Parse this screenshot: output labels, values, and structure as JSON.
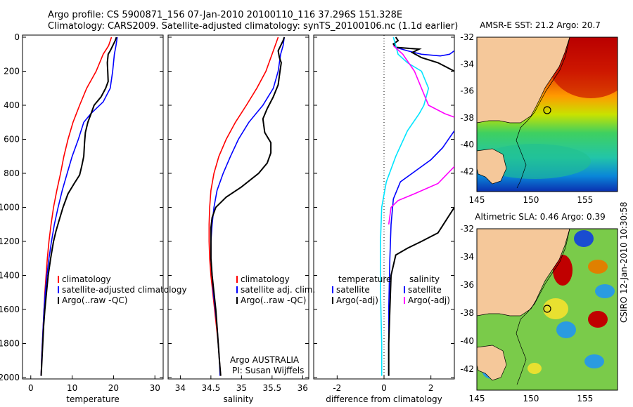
{
  "header": {
    "line1": "Argo profile: CS 5900871_156 07-Jan-2010 20100110_116 37.296S 151.328E",
    "line2": "Climatology: CARS2009. Satellite-adjusted climatology: synTS_20100106.nc (1.1d earlier)"
  },
  "colors": {
    "climatology": "#ff0000",
    "satellite": "#0000ff",
    "argo": "#000000",
    "cyan": "#00e5ff",
    "magenta": "#ff00ff",
    "land": "#f5c89a"
  },
  "chart_data": [
    {
      "type": "line",
      "xlabel": "temperature",
      "ylabel": "",
      "xlim": [
        -2,
        32
      ],
      "ylim": [
        2000,
        0
      ],
      "y_reversed": true,
      "xticks": [
        0,
        10,
        20,
        30
      ],
      "yticks": [
        0,
        200,
        400,
        600,
        800,
        1000,
        1200,
        1400,
        1600,
        1800,
        2000
      ],
      "legend": [
        "climatology",
        "satellite-adjusted climatology",
        "Argo(..raw -QC)"
      ],
      "legend_position": "bottom-right",
      "series": [
        {
          "name": "climatology",
          "color": "#ff0000",
          "points": [
            [
              19.5,
              0
            ],
            [
              18.8,
              50
            ],
            [
              17.5,
              100
            ],
            [
              15.8,
              200
            ],
            [
              13.5,
              300
            ],
            [
              11.8,
              400
            ],
            [
              10.2,
              500
            ],
            [
              9.0,
              600
            ],
            [
              8.0,
              700
            ],
            [
              7.2,
              800
            ],
            [
              6.3,
              900
            ],
            [
              5.5,
              1000
            ],
            [
              4.9,
              1100
            ],
            [
              4.4,
              1200
            ],
            [
              4.0,
              1300
            ],
            [
              3.7,
              1400
            ],
            [
              3.4,
              1500
            ],
            [
              3.2,
              1600
            ],
            [
              3.0,
              1700
            ],
            [
              2.8,
              1800
            ],
            [
              2.6,
              1900
            ],
            [
              2.5,
              1990
            ]
          ]
        },
        {
          "name": "satellite-adjusted climatology",
          "color": "#0000ff",
          "points": [
            [
              20.9,
              0
            ],
            [
              20.6,
              50
            ],
            [
              20.2,
              100
            ],
            [
              19.8,
              200
            ],
            [
              19.2,
              300
            ],
            [
              17.5,
              380
            ],
            [
              14.5,
              450
            ],
            [
              12.8,
              500
            ],
            [
              11.5,
              600
            ],
            [
              10.0,
              700
            ],
            [
              8.8,
              800
            ],
            [
              7.6,
              900
            ],
            [
              6.6,
              1000
            ],
            [
              5.7,
              1100
            ],
            [
              5.0,
              1200
            ],
            [
              4.4,
              1300
            ],
            [
              3.9,
              1400
            ],
            [
              3.5,
              1500
            ],
            [
              3.2,
              1600
            ],
            [
              3.0,
              1700
            ],
            [
              2.8,
              1800
            ],
            [
              2.6,
              1900
            ],
            [
              2.5,
              1990
            ]
          ]
        },
        {
          "name": "Argo(..raw -QC)",
          "color": "#000000",
          "points": [
            [
              20.7,
              0
            ],
            [
              20.4,
              20
            ],
            [
              19.2,
              80
            ],
            [
              18.7,
              100
            ],
            [
              18.5,
              150
            ],
            [
              18.6,
              200
            ],
            [
              18.7,
              260
            ],
            [
              18.1,
              300
            ],
            [
              17.0,
              350
            ],
            [
              15.3,
              400
            ],
            [
              14.4,
              460
            ],
            [
              13.8,
              500
            ],
            [
              13.2,
              560
            ],
            [
              13.0,
              620
            ],
            [
              12.8,
              700
            ],
            [
              12.3,
              760
            ],
            [
              11.8,
              810
            ],
            [
              10.5,
              860
            ],
            [
              9.0,
              920
            ],
            [
              7.8,
              1000
            ],
            [
              6.8,
              1080
            ],
            [
              6.1,
              1140
            ],
            [
              5.5,
              1200
            ],
            [
              4.8,
              1300
            ],
            [
              4.2,
              1400
            ],
            [
              3.8,
              1500
            ],
            [
              3.4,
              1600
            ],
            [
              3.1,
              1700
            ],
            [
              2.9,
              1800
            ],
            [
              2.7,
              1900
            ],
            [
              2.5,
              1990
            ]
          ]
        }
      ]
    },
    {
      "type": "line",
      "xlabel": "salinity",
      "ylabel": "",
      "xlim": [
        33.8,
        36.1
      ],
      "ylim": [
        2000,
        0
      ],
      "y_reversed": true,
      "xticks": [
        34,
        34.5,
        35,
        35.5,
        36
      ],
      "legend": [
        "climatology",
        "satellite adj. clim.",
        "Argo(..raw -QC)"
      ],
      "legend_position": "bottom-right",
      "annotations": [
        "Argo AUSTRALIA",
        "PI: Susan Wijffels"
      ],
      "series": [
        {
          "name": "climatology",
          "color": "#ff0000",
          "points": [
            [
              35.6,
              0
            ],
            [
              35.55,
              50
            ],
            [
              35.5,
              100
            ],
            [
              35.4,
              200
            ],
            [
              35.25,
              300
            ],
            [
              35.08,
              400
            ],
            [
              34.9,
              500
            ],
            [
              34.75,
              600
            ],
            [
              34.63,
              700
            ],
            [
              34.55,
              800
            ],
            [
              34.5,
              900
            ],
            [
              34.48,
              1000
            ],
            [
              34.47,
              1100
            ],
            [
              34.47,
              1200
            ],
            [
              34.48,
              1300
            ],
            [
              34.5,
              1400
            ],
            [
              34.53,
              1500
            ],
            [
              34.56,
              1600
            ],
            [
              34.59,
              1700
            ],
            [
              34.62,
              1800
            ],
            [
              34.64,
              1900
            ],
            [
              34.66,
              1990
            ]
          ]
        },
        {
          "name": "satellite adj. clim.",
          "color": "#0000ff",
          "points": [
            [
              35.7,
              0
            ],
            [
              35.68,
              50
            ],
            [
              35.64,
              100
            ],
            [
              35.6,
              200
            ],
            [
              35.52,
              300
            ],
            [
              35.35,
              400
            ],
            [
              35.12,
              500
            ],
            [
              34.95,
              600
            ],
            [
              34.82,
              700
            ],
            [
              34.7,
              800
            ],
            [
              34.6,
              900
            ],
            [
              34.55,
              1000
            ],
            [
              34.52,
              1100
            ],
            [
              34.5,
              1200
            ],
            [
              34.5,
              1300
            ],
            [
              34.52,
              1400
            ],
            [
              34.54,
              1500
            ],
            [
              34.57,
              1600
            ],
            [
              34.6,
              1700
            ],
            [
              34.62,
              1800
            ],
            [
              34.64,
              1900
            ],
            [
              34.65,
              1990
            ]
          ]
        },
        {
          "name": "Argo(..raw -QC)",
          "color": "#000000",
          "points": [
            [
              35.7,
              0
            ],
            [
              35.68,
              20
            ],
            [
              35.6,
              80
            ],
            [
              35.62,
              120
            ],
            [
              35.65,
              150
            ],
            [
              35.63,
              200
            ],
            [
              35.6,
              280
            ],
            [
              35.52,
              350
            ],
            [
              35.42,
              420
            ],
            [
              35.35,
              480
            ],
            [
              35.38,
              560
            ],
            [
              35.48,
              620
            ],
            [
              35.48,
              680
            ],
            [
              35.42,
              740
            ],
            [
              35.28,
              800
            ],
            [
              35.0,
              880
            ],
            [
              34.75,
              940
            ],
            [
              34.58,
              1000
            ],
            [
              34.52,
              1060
            ],
            [
              34.5,
              1120
            ],
            [
              34.5,
              1200
            ],
            [
              34.5,
              1300
            ],
            [
              34.52,
              1400
            ],
            [
              34.55,
              1500
            ],
            [
              34.58,
              1600
            ],
            [
              34.6,
              1700
            ],
            [
              34.62,
              1800
            ],
            [
              34.64,
              1900
            ],
            [
              34.66,
              1990
            ]
          ]
        }
      ]
    },
    {
      "type": "line",
      "xlabel": "difference from climatology",
      "ylabel": "",
      "xlim": [
        -3,
        3
      ],
      "ylim": [
        2000,
        0
      ],
      "y_reversed": true,
      "xticks": [
        -2,
        0,
        2
      ],
      "zero_line": "dotted",
      "legend": [
        "temperature",
        "satellite",
        "Argo(-adj)",
        "salinity",
        "satellite",
        "Argo(-adj)"
      ],
      "legend_position": "bottom",
      "series": [
        {
          "name": "temperature satellite",
          "color": "#0000ff",
          "points": [
            [
              0.5,
              0
            ],
            [
              0.6,
              20
            ],
            [
              0.4,
              40
            ],
            [
              0.5,
              60
            ],
            [
              1.0,
              80
            ],
            [
              1.6,
              100
            ],
            [
              2.4,
              110
            ],
            [
              2.8,
              100
            ],
            [
              3,
              80
            ]
          ]
        },
        {
          "name": "temperature Argo(-adj)",
          "color": "#000000",
          "points": [
            [
              0.5,
              0
            ],
            [
              0.6,
              20
            ],
            [
              0.4,
              40
            ],
            [
              0.5,
              60
            ],
            [
              1.5,
              70
            ],
            [
              1.2,
              90
            ],
            [
              1.6,
              120
            ],
            [
              2.3,
              150
            ],
            [
              3,
              200
            ]
          ]
        },
        {
          "name": "salinity satellite",
          "color": "#0000ff",
          "points": [
            [
              3,
              550
            ],
            [
              2.5,
              650
            ],
            [
              2.0,
              720
            ],
            [
              1.3,
              790
            ],
            [
              0.7,
              850
            ],
            [
              0.4,
              950
            ],
            [
              0.3,
              1100
            ],
            [
              0.25,
              1300
            ],
            [
              0.2,
              1600
            ],
            [
              0.2,
              1990
            ]
          ]
        },
        {
          "name": "salinity Argo(-adj)",
          "color": "#000000",
          "points": [
            [
              3,
              1000
            ],
            [
              2.3,
              1150
            ],
            [
              1.6,
              1200
            ],
            [
              1.0,
              1240
            ],
            [
              0.5,
              1280
            ],
            [
              0.3,
              1400
            ],
            [
              0.25,
              1600
            ],
            [
              0.2,
              1800
            ],
            [
              0.2,
              1990
            ]
          ]
        },
        {
          "name": "temperature cyan",
          "color": "#00e5ff",
          "points": [
            [
              0.4,
              0
            ],
            [
              0.5,
              50
            ],
            [
              0.6,
              100
            ],
            [
              1.0,
              150
            ],
            [
              1.6,
              200
            ],
            [
              1.9,
              300
            ],
            [
              1.7,
              400
            ],
            [
              1.5,
              450
            ],
            [
              1.0,
              550
            ],
            [
              0.5,
              700
            ],
            [
              0.1,
              850
            ],
            [
              -0.1,
              1000
            ],
            [
              -0.15,
              1200
            ],
            [
              -0.15,
              1500
            ],
            [
              -0.1,
              1800
            ],
            [
              -0.1,
              1990
            ]
          ]
        },
        {
          "name": "salinity Argo(-adj) magenta",
          "color": "#ff00ff",
          "points": [
            [
              0.4,
              50
            ],
            [
              0.8,
              100
            ],
            [
              1.3,
              200
            ],
            [
              1.6,
              300
            ],
            [
              1.9,
              400
            ],
            [
              2.6,
              450
            ],
            [
              3,
              470
            ]
          ]
        },
        {
          "name": "salinity magenta lower",
          "color": "#ff00ff",
          "points": [
            [
              3,
              760
            ],
            [
              2.3,
              860
            ],
            [
              1.3,
              920
            ],
            [
              0.6,
              960
            ],
            [
              0.3,
              1000
            ],
            [
              0.2,
              1100
            ]
          ]
        }
      ]
    },
    {
      "type": "heatmap",
      "title": "AMSR-E SST: 21.2 Argo: 20.7",
      "xlim": [
        145,
        158
      ],
      "ylim": [
        -43.5,
        -32
      ],
      "xticks": [
        145,
        150,
        155
      ],
      "yticks": [
        -32,
        -34,
        -36,
        -38,
        -40,
        -42
      ],
      "marker": {
        "lon": 151.33,
        "lat": -37.3
      }
    },
    {
      "type": "heatmap",
      "title": "Altimetric SLA: 0.46 Argo: 0.39",
      "xlim": [
        145,
        158
      ],
      "ylim": [
        -43.5,
        -32
      ],
      "xticks": [
        145,
        150,
        155
      ],
      "yticks": [
        -32,
        -34,
        -36,
        -38,
        -40,
        -42
      ],
      "marker": {
        "lon": 151.33,
        "lat": -37.3
      }
    }
  ],
  "side_label": "CSIRO 12-Jan-2010 10:30:58"
}
